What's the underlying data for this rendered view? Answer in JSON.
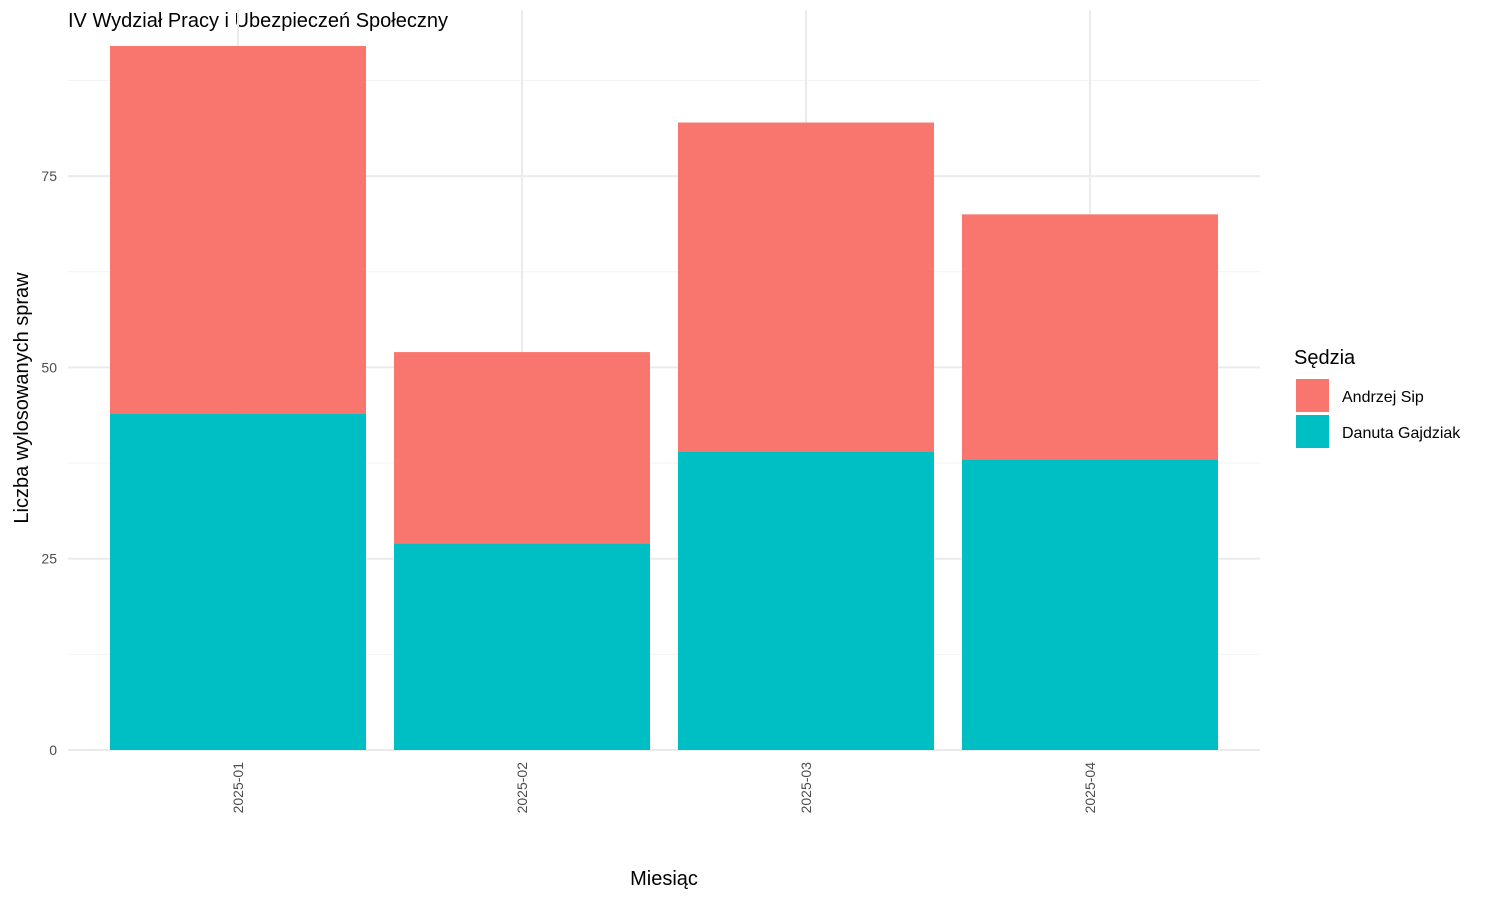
{
  "chart_data": {
    "type": "bar",
    "stacked": true,
    "title": "IV Wydział Pracy i Ubezpieczeń Społeczny",
    "xlabel": "Miesiąc",
    "ylabel": "Liczba wylosowanych spraw",
    "categories": [
      "2025-01",
      "2025-02",
      "2025-03",
      "2025-04"
    ],
    "series": [
      {
        "name": "Danuta Gajdziak",
        "color": "#00BFC4",
        "values": [
          44,
          27,
          39,
          38
        ]
      },
      {
        "name": "Andrzej Sip",
        "color": "#F8766D",
        "values": [
          48,
          25,
          43,
          32
        ]
      }
    ],
    "ylim": [
      0,
      92
    ],
    "y_ticks": [
      0,
      25,
      50,
      75
    ],
    "grid": true,
    "legend": {
      "title": "Sędzia",
      "position": "right",
      "items": [
        {
          "label": "Andrzej Sip",
          "color": "#F8766D"
        },
        {
          "label": "Danuta Gajdziak",
          "color": "#00BFC4"
        }
      ]
    }
  }
}
